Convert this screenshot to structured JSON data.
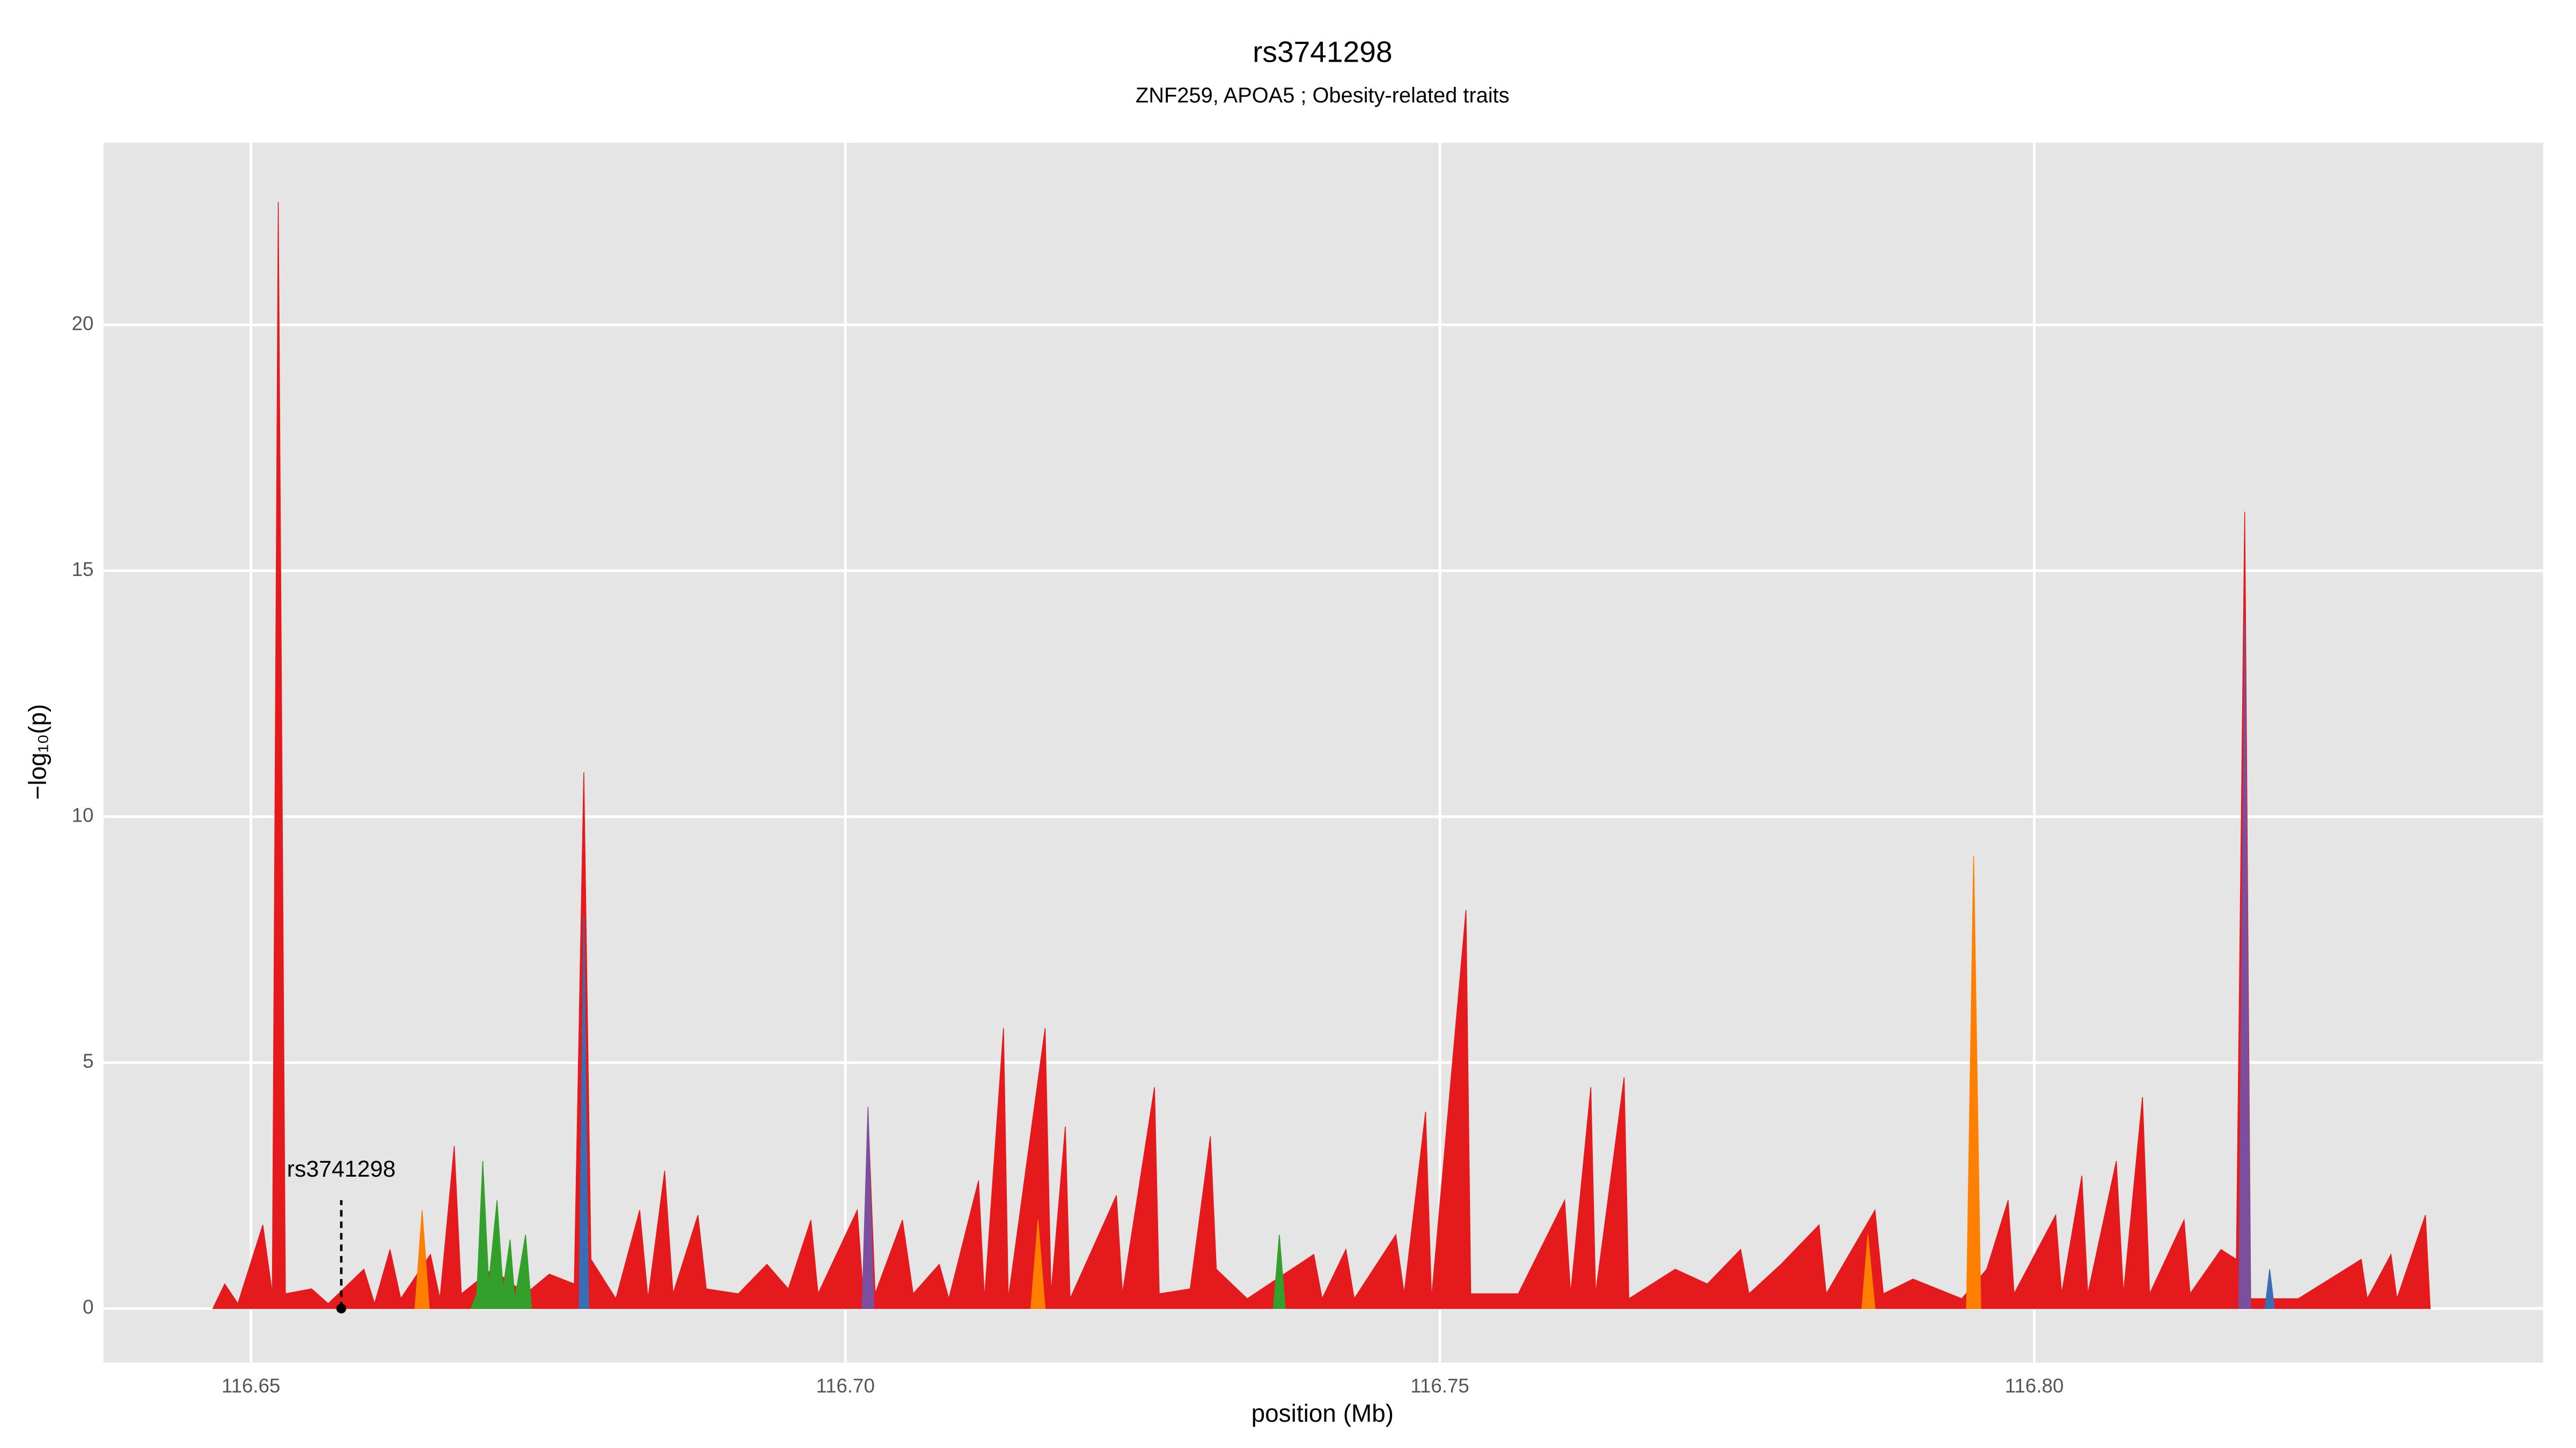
{
  "chart_data": {
    "type": "area",
    "title": "rs3741298",
    "subtitle": "ZNF259, APOA5 ; Obesity-related traits",
    "x_label": "position (Mb)",
    "y_label": "−log₁₀(p)",
    "xlim": [
      116.6376,
      116.8428
    ],
    "ylim": [
      -1.1,
      23.7
    ],
    "xticks": [
      116.65,
      {
        "value": 116.7,
        "label": "116.70"
      },
      116.75,
      {
        "value": 116.8,
        "label": "116.80"
      }
    ],
    "yticks": [
      0,
      5,
      10,
      15,
      20
    ],
    "grid": true,
    "annotation": {
      "label": "rs3741298",
      "x": 116.6576,
      "y": 0
    },
    "series": [
      {
        "color": "#e41a1c",
        "x": [
          116.6468,
          116.6478,
          116.6489,
          116.651,
          116.6518,
          116.6523,
          116.6529,
          116.6551,
          116.6565,
          116.6595,
          116.6604,
          116.6617,
          116.6626,
          116.6651,
          116.6659,
          116.6671,
          116.6677,
          116.6703,
          116.6731,
          116.6751,
          116.6772,
          116.678,
          116.6786,
          116.6807,
          116.6827,
          116.6834,
          116.6848,
          116.6855,
          116.6876,
          116.6883,
          116.691,
          116.6934,
          116.6952,
          116.6971,
          116.6977,
          116.701,
          116.7015,
          116.7019,
          116.7025,
          116.7048,
          116.7057,
          116.7079,
          116.7087,
          116.7112,
          116.7117,
          116.7133,
          116.7137,
          116.7168,
          116.7173,
          116.7185,
          116.7189,
          116.7228,
          116.7233,
          116.726,
          116.7264,
          116.729,
          116.7307,
          116.7312,
          116.7338,
          116.7394,
          116.7401,
          116.7421,
          116.7428,
          116.7463,
          116.747,
          116.7488,
          116.7493,
          116.7522,
          116.7526,
          116.7566,
          116.7605,
          116.761,
          116.7627,
          116.7631,
          116.7655,
          116.7659,
          116.7698,
          116.7725,
          116.7753,
          116.776,
          116.7787,
          116.7819,
          116.7825,
          116.7866,
          116.7873,
          116.7898,
          116.7939,
          116.796,
          116.7978,
          116.7983,
          116.8018,
          116.8023,
          116.804,
          116.8045,
          116.8069,
          116.8075,
          116.8091,
          116.8097,
          116.8126,
          116.8131,
          116.8157,
          116.817,
          116.8177,
          116.8182,
          116.8222,
          116.8275,
          116.828,
          116.83,
          116.8305,
          116.8329,
          116.8333
        ],
        "values": [
          0,
          0.5,
          0.1,
          1.7,
          0.3,
          22.5,
          0.3,
          0.4,
          0.1,
          0.8,
          0.1,
          1.2,
          0.2,
          1.1,
          0.2,
          3.3,
          0.3,
          0.8,
          0.3,
          0.7,
          0.5,
          10.9,
          1.0,
          0.2,
          2.0,
          0.2,
          2.8,
          0.3,
          1.9,
          0.4,
          0.3,
          0.9,
          0.4,
          1.8,
          0.3,
          2.0,
          0.3,
          4.0,
          0.3,
          1.8,
          0.3,
          0.9,
          0.2,
          2.6,
          0.2,
          5.7,
          0.2,
          5.7,
          0.3,
          3.7,
          0.2,
          2.3,
          0.3,
          4.5,
          0.3,
          0.4,
          3.5,
          0.8,
          0.2,
          1.1,
          0.2,
          1.2,
          0.2,
          1.5,
          0.3,
          4.0,
          0.2,
          8.1,
          0.3,
          0.3,
          2.2,
          0.3,
          4.5,
          0.3,
          4.7,
          0.2,
          0.8,
          0.5,
          1.2,
          0.3,
          0.9,
          1.7,
          0.3,
          2.0,
          0.3,
          0.6,
          0.2,
          0.8,
          2.2,
          0.3,
          1.9,
          0.3,
          2.7,
          0.3,
          3.0,
          0.3,
          4.3,
          0.3,
          1.8,
          0.3,
          1.2,
          1.0,
          16.2,
          0.2,
          0.2,
          1.0,
          0.2,
          1.1,
          0.2,
          1.9,
          0
        ]
      },
      {
        "color": "#ff7f00",
        "x": [
          116.6638,
          116.6644,
          116.665,
          null,
          116.7156,
          116.7162,
          116.7168,
          null,
          116.7855,
          116.786,
          116.7866,
          null,
          116.7943,
          116.7949,
          116.7955
        ],
        "values": [
          0,
          2.0,
          0,
          null,
          0,
          1.8,
          0,
          null,
          0,
          1.5,
          0,
          null,
          0,
          9.2,
          0
        ]
      },
      {
        "color": "#33a02c",
        "x": [
          116.6685,
          116.669,
          116.6695,
          116.67,
          116.6707,
          116.6712,
          116.6718,
          116.6722,
          116.6731,
          116.6736,
          null,
          116.736,
          116.7365,
          116.737
        ],
        "values": [
          0,
          0.3,
          3.0,
          0.5,
          2.2,
          0.4,
          1.4,
          0.2,
          1.5,
          0,
          null,
          0,
          1.5,
          0
        ]
      },
      {
        "color": "#7b4f9e",
        "x": [
          116.7014,
          116.7019,
          116.7024,
          null,
          116.8172,
          116.8177,
          116.8182
        ],
        "values": [
          0,
          4.1,
          0,
          null,
          0,
          14,
          0
        ]
      },
      {
        "color": "#3a6db5",
        "x": [
          116.6776,
          116.678,
          116.6784,
          null,
          116.8194,
          116.8198,
          116.8202
        ],
        "values": [
          0,
          8.0,
          0,
          null,
          0,
          0.8,
          0
        ]
      }
    ]
  }
}
